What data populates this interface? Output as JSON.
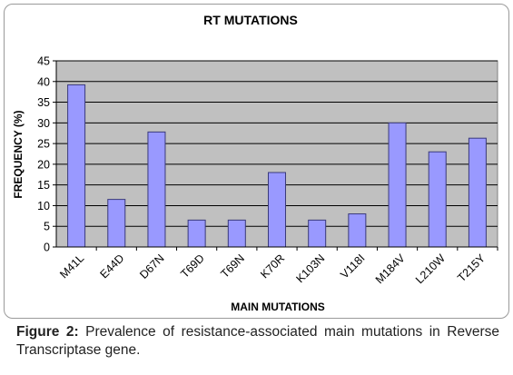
{
  "chart_data": {
    "type": "bar",
    "title": "RT MUTATIONS",
    "xlabel": "MAIN MUTATIONS",
    "ylabel": "FREQUENCY (%)",
    "categories": [
      "M41L",
      "E44D",
      "D67N",
      "T69D",
      "T69N",
      "K70R",
      "K103N",
      "V118I",
      "M184V",
      "L210W",
      "T215Y"
    ],
    "values": [
      39.2,
      11.5,
      27.8,
      6.5,
      6.5,
      18.0,
      6.5,
      8.0,
      30.0,
      23.0,
      26.3
    ],
    "ylim": [
      0,
      45
    ],
    "yticks": [
      "0",
      "5",
      "10",
      "15",
      "20",
      "25",
      "30",
      "35",
      "40",
      "45"
    ],
    "grid": true,
    "legend": "none",
    "colors": {
      "bar": "#9999ff",
      "bar_stroke": "#3a3a7a",
      "plot_bg": "#c0c0c0",
      "grid": "#000000"
    }
  },
  "caption": {
    "label": "Figure 2:",
    "text": " Prevalence of resistance-associated main mutations in Reverse Transcriptase gene."
  }
}
